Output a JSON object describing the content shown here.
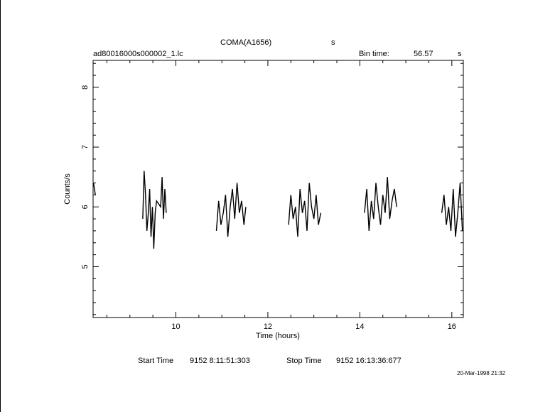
{
  "header": {
    "object": "COMA(A1656)",
    "unit_flag": "s",
    "filename": "ad80016000s000002_1.lc",
    "bin_label": "Bin time:",
    "bin_value": "56.57",
    "bin_unit": "s"
  },
  "footer": {
    "start_label": "Start Time",
    "start_value": "9152  8:11:51:303",
    "stop_label": "Stop Time",
    "stop_value": "9152 16:13:36:677",
    "stamp": "20-Mar-1998 21:32"
  },
  "chart_data": {
    "type": "line",
    "title": "COMA(A1656)",
    "xlabel": "Time (hours)",
    "ylabel": "Counts/s",
    "xlim": [
      8.2,
      16.25
    ],
    "ylim": [
      4.15,
      8.45
    ],
    "xticks": [
      10,
      12,
      14,
      16
    ],
    "yticks": [
      5,
      6,
      7,
      8
    ],
    "grid": false,
    "series": [
      {
        "x": [
          8.21,
          8.25
        ],
        "y": [
          6.4,
          6.2
        ]
      },
      {
        "x": [
          9.28,
          9.31,
          9.34,
          9.37,
          9.4,
          9.43,
          9.46,
          9.49,
          9.52,
          9.55,
          9.58,
          9.67,
          9.7,
          9.73,
          9.76,
          9.79
        ],
        "y": [
          5.8,
          6.6,
          6.2,
          5.6,
          5.9,
          6.3,
          5.5,
          6.0,
          5.3,
          5.9,
          6.1,
          6.0,
          6.5,
          5.8,
          6.3,
          5.9
        ]
      },
      {
        "x": [
          10.88,
          10.93,
          10.98,
          11.03,
          11.08,
          11.13,
          11.18,
          11.23,
          11.28,
          11.33,
          11.38,
          11.43,
          11.48,
          11.52
        ],
        "y": [
          5.6,
          6.1,
          5.7,
          5.9,
          6.2,
          5.5,
          6.0,
          6.3,
          5.8,
          6.4,
          5.9,
          6.1,
          5.7,
          6.0
        ]
      },
      {
        "x": [
          12.45,
          12.5,
          12.55,
          12.6,
          12.65,
          12.7,
          12.75,
          12.8,
          12.85,
          12.9,
          12.95,
          13.0,
          13.05,
          13.1,
          13.15
        ],
        "y": [
          5.7,
          6.2,
          5.8,
          6.0,
          5.5,
          6.3,
          5.9,
          6.1,
          5.6,
          6.4,
          6.0,
          5.8,
          6.2,
          5.7,
          5.9
        ]
      },
      {
        "x": [
          14.1,
          14.15,
          14.2,
          14.25,
          14.3,
          14.35,
          14.4,
          14.45,
          14.5,
          14.55,
          14.6,
          14.65,
          14.7,
          14.75,
          14.8
        ],
        "y": [
          5.9,
          6.3,
          5.6,
          6.1,
          5.8,
          6.4,
          6.0,
          5.7,
          6.2,
          5.9,
          6.5,
          5.8,
          6.1,
          6.3,
          6.0
        ]
      },
      {
        "x": [
          15.78,
          15.83,
          15.88,
          15.93,
          15.98,
          16.03,
          16.08,
          16.13,
          16.18,
          16.23
        ],
        "y": [
          5.9,
          6.2,
          5.7,
          6.0,
          5.6,
          6.3,
          5.5,
          5.9,
          6.4,
          5.6
        ]
      }
    ]
  }
}
